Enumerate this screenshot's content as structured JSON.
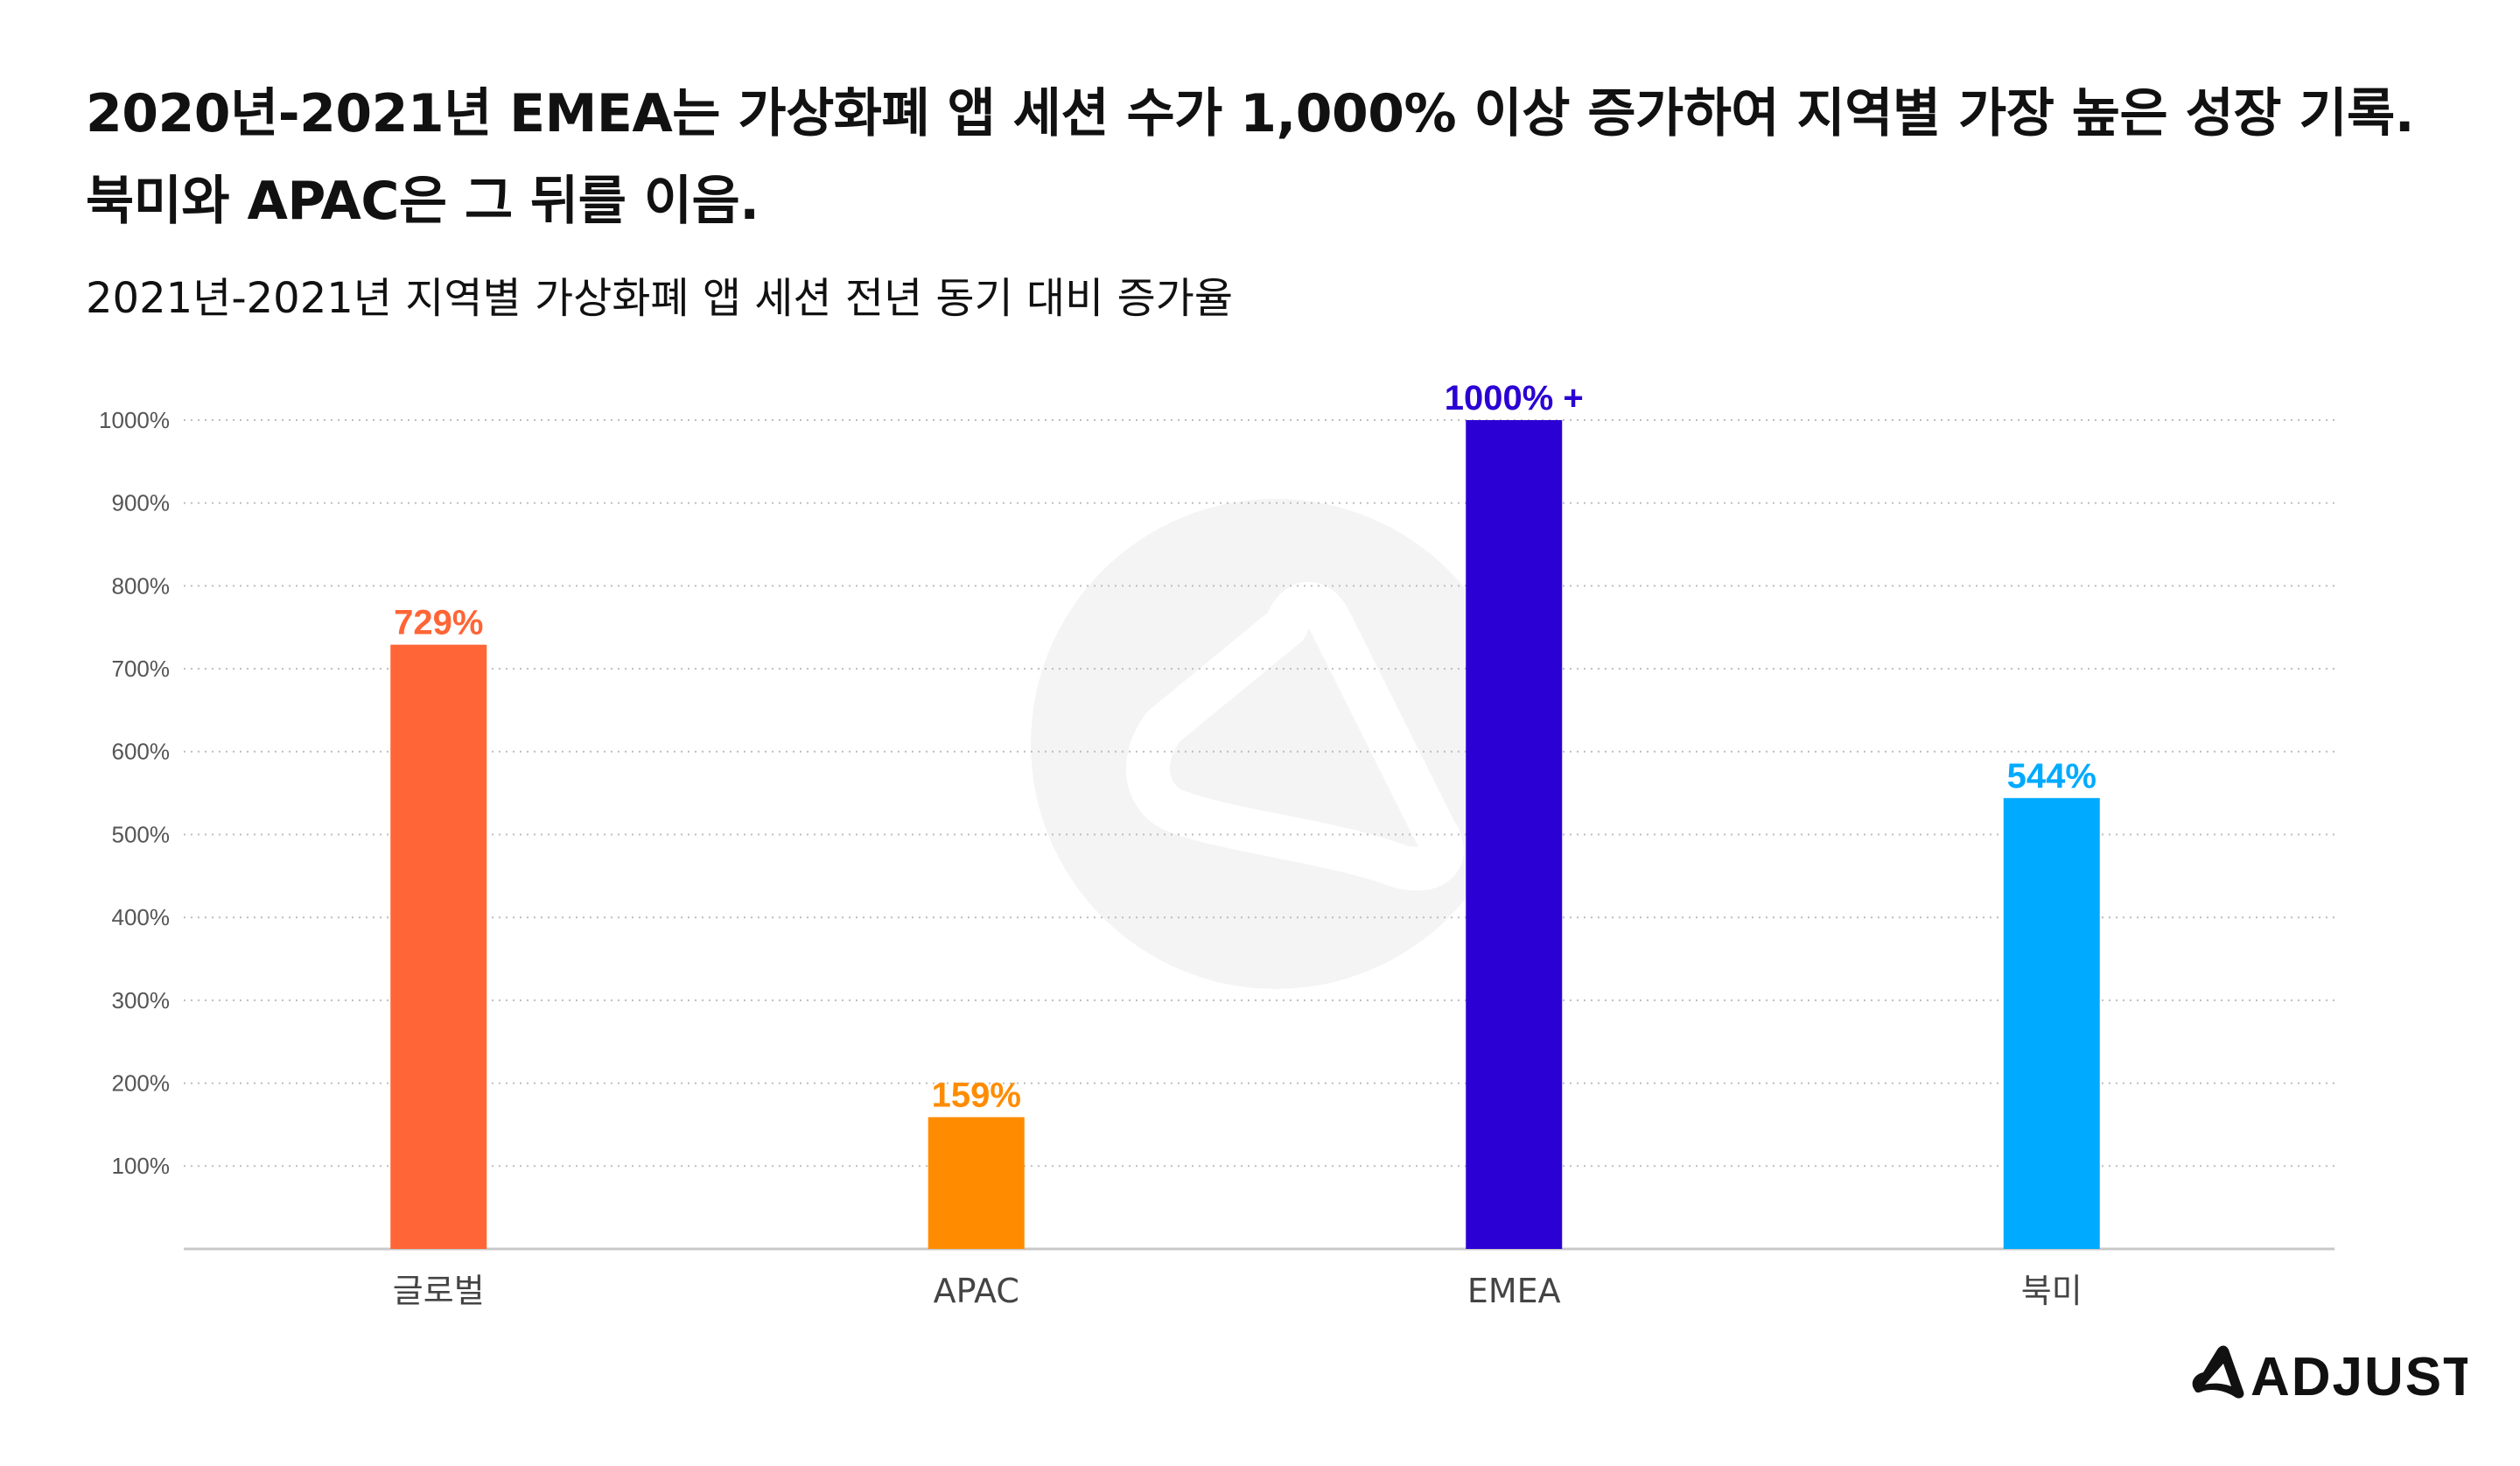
{
  "headline": {
    "line1": "2020년-2021년 EMEA는 가상화폐 앱 세션 수가 1,000% 이상 증가하여 지역별 가장 높은 성장 기록.",
    "line2": "북미와 APAC은 그 뒤를 이음."
  },
  "chart_data": {
    "type": "bar",
    "title": "2021년-2021년 지역별 가상화폐 앱 세션 전년 동기 대비 증가율",
    "categories": [
      "글로벌",
      "APAC",
      "EMEA",
      "북미"
    ],
    "values": [
      729,
      159,
      1000,
      544
    ],
    "data_labels": [
      "729%",
      "159%",
      "1000% +",
      "544%"
    ],
    "bar_colors": [
      "#FF6536",
      "#FF8C00",
      "#2B00D4",
      "#00AAFF"
    ],
    "y_ticks": [
      100,
      200,
      300,
      400,
      500,
      600,
      700,
      800,
      900,
      1000
    ],
    "y_tick_labels": [
      "100%",
      "200%",
      "300%",
      "400%",
      "500%",
      "600%",
      "700%",
      "800%",
      "900%",
      "1000%"
    ],
    "ylim": [
      0,
      1000
    ],
    "grid": true,
    "xlabel": "",
    "ylabel": ""
  },
  "brand": {
    "logo_text": "ADJUST"
  },
  "colors": {
    "text": "#111111",
    "tick_label": "#555555",
    "grid": "#BDBDBD",
    "axis": "#C8C8C8",
    "watermark": "#F4F4F4"
  }
}
